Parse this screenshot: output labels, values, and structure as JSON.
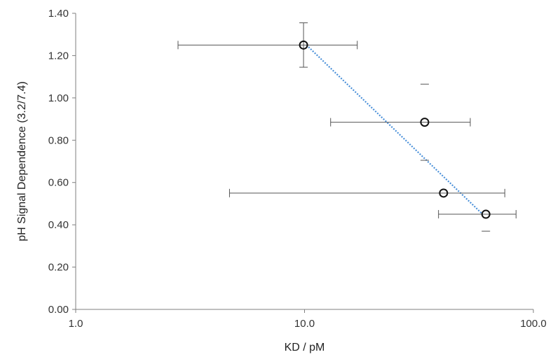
{
  "chart_data": {
    "type": "scatter",
    "title": "",
    "xlabel": "KD / pM",
    "ylabel": "pH Signal Dependence (3.2/7.4)",
    "xscale": "log",
    "xlim": [
      1.0,
      100.0
    ],
    "ylim": [
      0.0,
      1.4
    ],
    "xticks": [
      1.0,
      10.0,
      100.0
    ],
    "xtick_labels": [
      "1.0",
      "10.0",
      "100.0"
    ],
    "yticks": [
      0.0,
      0.2,
      0.4,
      0.6,
      0.8,
      1.0,
      1.2,
      1.4
    ],
    "ytick_labels": [
      "0.00",
      "0.20",
      "0.40",
      "0.60",
      "0.80",
      "1.00",
      "1.20",
      "1.40"
    ],
    "grid": false,
    "legend": "none",
    "points": [
      {
        "x": 9.9,
        "y": 1.25,
        "x_err": [
          2.8,
          17.0
        ],
        "y_err": [
          1.145,
          1.355
        ]
      },
      {
        "x": 33.5,
        "y": 0.885,
        "x_err": [
          13.0,
          53.0
        ],
        "y_err": [
          0.705,
          1.065
        ]
      },
      {
        "x": 40.5,
        "y": 0.55,
        "x_err": [
          4.7,
          75.0
        ],
        "y_err": null
      },
      {
        "x": 62.0,
        "y": 0.45,
        "x_err": [
          38.5,
          84.0
        ],
        "y_err": [
          0.37,
          null
        ]
      }
    ],
    "trendline": {
      "x": [
        10.2,
        60.0
      ],
      "y": [
        1.25,
        0.45
      ],
      "style": "dotted"
    },
    "colors": {
      "marker": "#111111",
      "error_bar": "#555555",
      "trendline": "#4a90d9",
      "axis": "#7f7f7f"
    }
  }
}
